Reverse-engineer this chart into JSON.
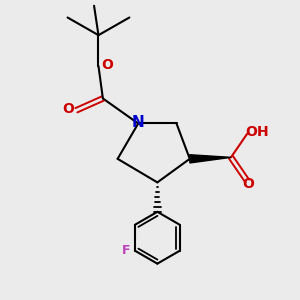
{
  "bg_color": "#ebebeb",
  "bond_color": "#000000",
  "N_color": "#0000cc",
  "O_color": "#cc0000",
  "F_color": "#bb44bb",
  "figsize": [
    3.0,
    3.0
  ],
  "dpi": 100,
  "xlim": [
    0,
    10
  ],
  "ylim": [
    0,
    10
  ]
}
